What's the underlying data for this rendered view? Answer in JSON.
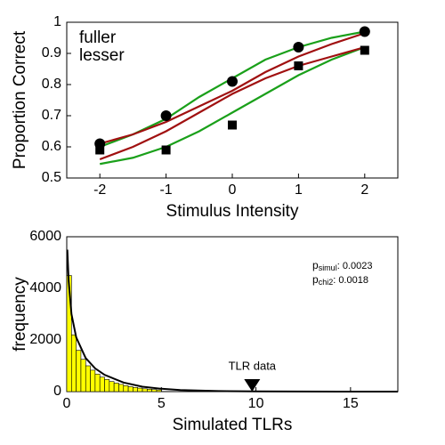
{
  "chart_data": [
    {
      "type": "line",
      "xlabel": "Stimulus Intensity",
      "ylabel": "Proportion Correct",
      "xlim": [
        -2.5,
        2.5
      ],
      "xticks": [
        -2,
        -1,
        0,
        1,
        2
      ],
      "ylim": [
        0.5,
        1
      ],
      "yticks": [
        0.5,
        0.6,
        0.7,
        0.8,
        0.9,
        1
      ],
      "legend": "upper left",
      "series": [
        {
          "name": "fuller",
          "color": "#1aa01a",
          "x": [
            -2,
            -1.5,
            -1,
            -0.5,
            0,
            0.5,
            1,
            1.5,
            2
          ],
          "values": [
            0.6,
            0.64,
            0.69,
            0.76,
            0.82,
            0.88,
            0.92,
            0.95,
            0.97
          ]
        },
        {
          "name": "fuller",
          "color": "#1aa01a",
          "x": [
            -2,
            -1.5,
            -1,
            -0.5,
            0,
            0.5,
            1,
            1.5,
            2
          ],
          "values": [
            0.545,
            0.565,
            0.6,
            0.65,
            0.71,
            0.77,
            0.83,
            0.88,
            0.92
          ]
        },
        {
          "name": "lesser",
          "color": "#a01010",
          "x": [
            -2,
            -1.5,
            -1,
            -0.5,
            0,
            0.5,
            1,
            1.5,
            2
          ],
          "values": [
            0.61,
            0.64,
            0.68,
            0.73,
            0.78,
            0.84,
            0.89,
            0.93,
            0.965
          ]
        },
        {
          "name": "lesser",
          "color": "#a01010",
          "x": [
            -2,
            -1.5,
            -1,
            -0.5,
            0,
            0.5,
            1,
            1.5,
            2
          ],
          "values": [
            0.56,
            0.6,
            0.65,
            0.71,
            0.77,
            0.82,
            0.86,
            0.89,
            0.92
          ]
        }
      ],
      "points": [
        {
          "marker": "circle",
          "color": "#000000",
          "x": [
            -2,
            -1,
            0,
            1,
            2
          ],
          "values": [
            0.61,
            0.7,
            0.81,
            0.92,
            0.97
          ]
        },
        {
          "marker": "square",
          "color": "#000000",
          "x": [
            -2,
            -1,
            0,
            1,
            2
          ],
          "values": [
            0.59,
            0.59,
            0.67,
            0.86,
            0.91
          ]
        }
      ]
    },
    {
      "type": "histogram",
      "xlabel": "Simulated TLRs",
      "ylabel": "frequency",
      "xlim": [
        0,
        17.5
      ],
      "xticks": [
        0,
        5,
        10,
        15
      ],
      "ylim": [
        0,
        6000
      ],
      "yticks": [
        0,
        2000,
        4000,
        6000
      ],
      "color": "#ffff00",
      "bins": [
        0,
        0.25,
        0.5,
        0.75,
        1,
        1.25,
        1.5,
        1.75,
        2,
        2.25,
        2.5,
        2.75,
        3,
        3.25,
        3.5,
        3.75,
        4,
        4.25,
        4.5,
        4.75,
        5
      ],
      "counts": [
        4500,
        2200,
        1600,
        1250,
        1000,
        830,
        680,
        560,
        470,
        390,
        330,
        280,
        230,
        190,
        160,
        135,
        110,
        95,
        80,
        65
      ],
      "curve": {
        "color": "#000000",
        "x": [
          0.03,
          0.1,
          0.25,
          0.5,
          1,
          1.5,
          2,
          3,
          4,
          5,
          6,
          8,
          10,
          12,
          17.5
        ],
        "values": [
          5500,
          4300,
          3000,
          2100,
          1300,
          900,
          650,
          350,
          190,
          110,
          60,
          20,
          8,
          3,
          0
        ]
      },
      "annotation": {
        "text": "TLR data",
        "x": 9.8
      },
      "stats": [
        {
          "symbol": "p",
          "subscript": "simul",
          "text": ": 0.0023"
        },
        {
          "symbol": "p",
          "subscript": "chi2",
          "text": ": 0.0018"
        }
      ]
    }
  ]
}
